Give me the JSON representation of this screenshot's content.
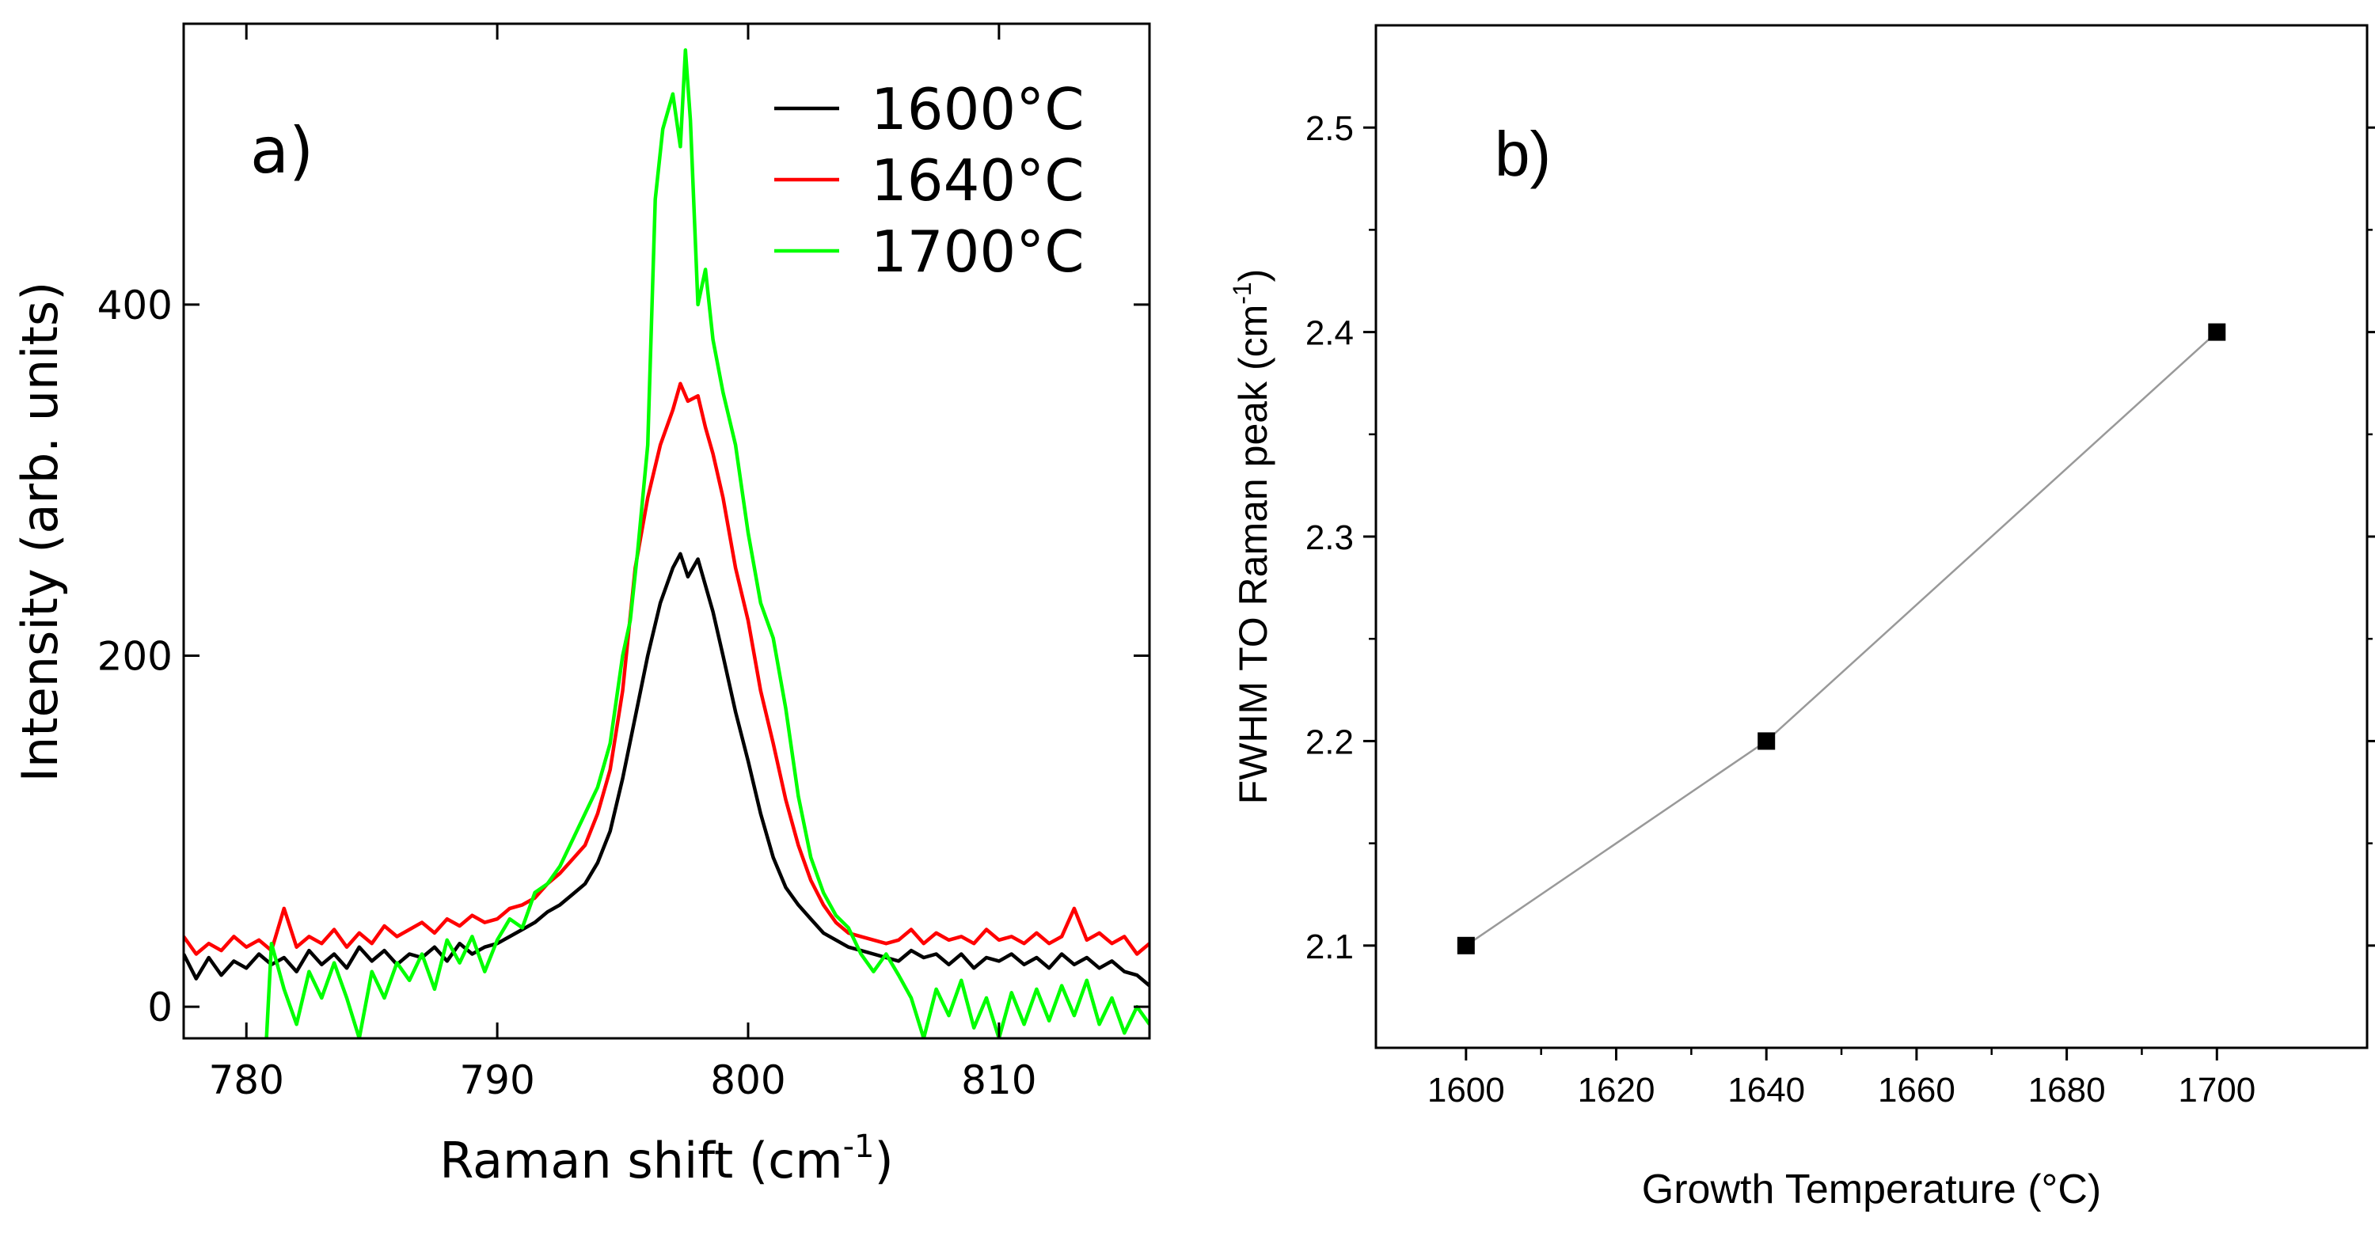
{
  "chart_data": [
    {
      "type": "line",
      "panel_label": "a)",
      "xlabel": "Raman shift (cm",
      "xlabel_sup": "-1",
      "xlabel_close": ")",
      "ylabel": "Intensity (arb. units)",
      "xlim": [
        777.5,
        816
      ],
      "ylim": [
        -18,
        560
      ],
      "xticks": [
        780,
        790,
        800,
        810
      ],
      "xtick_labels": [
        "780",
        "790",
        "800",
        "810"
      ],
      "yticks": [
        0,
        200,
        400
      ],
      "ytick_labels": [
        "0",
        "200",
        "400"
      ],
      "grid": false,
      "legend": "top-right",
      "series": [
        {
          "name": "1600°C",
          "color": "#000000",
          "x": [
            777.5,
            778,
            778.5,
            779,
            779.5,
            780,
            780.5,
            781,
            781.5,
            782,
            782.5,
            783,
            783.5,
            784,
            784.5,
            785,
            785.5,
            786,
            786.5,
            787,
            787.5,
            788,
            788.5,
            789,
            789.5,
            790,
            790.5,
            791,
            791.5,
            792,
            792.5,
            793,
            793.5,
            794,
            794.5,
            795,
            795.5,
            796,
            796.5,
            797,
            797.3,
            797.6,
            798,
            798.3,
            798.6,
            799,
            799.5,
            800,
            800.5,
            801,
            801.5,
            802,
            802.5,
            803,
            803.5,
            804,
            804.5,
            805,
            805.5,
            806,
            806.5,
            807,
            807.5,
            808,
            808.5,
            809,
            809.5,
            810,
            810.5,
            811,
            811.5,
            812,
            812.5,
            813,
            813.5,
            814,
            814.5,
            815,
            815.5,
            816
          ],
          "values": [
            30,
            16,
            28,
            18,
            26,
            22,
            30,
            24,
            28,
            20,
            32,
            24,
            30,
            22,
            34,
            26,
            32,
            24,
            30,
            28,
            34,
            26,
            36,
            30,
            34,
            36,
            40,
            44,
            48,
            54,
            58,
            64,
            70,
            82,
            100,
            130,
            165,
            200,
            230,
            250,
            258,
            245,
            255,
            240,
            225,
            200,
            168,
            140,
            110,
            85,
            68,
            58,
            50,
            42,
            38,
            34,
            32,
            30,
            28,
            26,
            32,
            28,
            30,
            24,
            30,
            22,
            28,
            26,
            30,
            24,
            28,
            22,
            30,
            24,
            28,
            22,
            26,
            20,
            18,
            12
          ]
        },
        {
          "name": "1640°C",
          "color": "#ff0000",
          "x": [
            777.5,
            778,
            778.5,
            779,
            779.5,
            780,
            780.5,
            781,
            781.5,
            782,
            782.5,
            783,
            783.5,
            784,
            784.5,
            785,
            785.5,
            786,
            786.5,
            787,
            787.5,
            788,
            788.5,
            789,
            789.5,
            790,
            790.5,
            791,
            791.5,
            792,
            792.5,
            793,
            793.5,
            794,
            794.5,
            795,
            795.5,
            796,
            796.5,
            797,
            797.3,
            797.6,
            798,
            798.3,
            798.6,
            799,
            799.5,
            800,
            800.5,
            801,
            801.5,
            802,
            802.5,
            803,
            803.5,
            804,
            804.5,
            805,
            805.5,
            806,
            806.5,
            807,
            807.5,
            808,
            808.5,
            809,
            809.5,
            810,
            810.5,
            811,
            811.5,
            812,
            812.5,
            813,
            813.5,
            814,
            814.5,
            815,
            815.5,
            816
          ],
          "values": [
            40,
            30,
            36,
            32,
            40,
            34,
            38,
            32,
            56,
            34,
            40,
            36,
            44,
            34,
            42,
            36,
            46,
            40,
            44,
            48,
            42,
            50,
            46,
            52,
            48,
            50,
            56,
            58,
            62,
            70,
            76,
            84,
            92,
            110,
            135,
            180,
            250,
            290,
            320,
            340,
            355,
            345,
            348,
            330,
            315,
            290,
            250,
            220,
            180,
            150,
            118,
            92,
            72,
            58,
            48,
            42,
            40,
            38,
            36,
            38,
            44,
            36,
            42,
            38,
            40,
            36,
            44,
            38,
            40,
            36,
            42,
            36,
            40,
            56,
            38,
            42,
            36,
            40,
            30,
            36
          ]
        },
        {
          "name": "1700°C",
          "color": "#00ff00",
          "x": [
            780.8,
            781,
            781.5,
            782,
            782.5,
            783,
            783.5,
            784,
            784.5,
            785,
            785.5,
            786,
            786.5,
            787,
            787.5,
            788,
            788.5,
            789,
            789.5,
            790,
            790.5,
            791,
            791.5,
            792,
            792.5,
            793,
            793.5,
            794,
            794.5,
            795,
            795.3,
            795.6,
            796,
            796.3,
            796.6,
            797,
            797.3,
            797.5,
            797.7,
            798,
            798.3,
            798.6,
            799,
            799.5,
            800,
            800.5,
            801,
            801.5,
            802,
            802.5,
            803,
            803.5,
            804,
            804.5,
            805,
            805.5,
            806,
            806.5,
            807,
            807.5,
            808,
            808.5,
            809,
            809.5,
            810,
            810.5,
            811,
            811.5,
            812,
            812.5,
            813,
            813.5,
            814,
            814.5,
            815,
            815.5,
            816
          ],
          "values": [
            -18,
            36,
            10,
            -10,
            20,
            5,
            25,
            5,
            -18,
            20,
            5,
            25,
            15,
            30,
            10,
            38,
            25,
            40,
            20,
            38,
            50,
            45,
            65,
            70,
            80,
            95,
            110,
            125,
            150,
            200,
            220,
            260,
            320,
            460,
            500,
            520,
            490,
            545,
            505,
            400,
            420,
            380,
            350,
            320,
            270,
            230,
            210,
            170,
            120,
            85,
            65,
            52,
            45,
            30,
            20,
            30,
            18,
            5,
            -18,
            10,
            -5,
            15,
            -12,
            5,
            -18,
            8,
            -10,
            10,
            -8,
            12,
            -5,
            15,
            -10,
            5,
            -15,
            0,
            -10
          ]
        }
      ]
    },
    {
      "type": "line",
      "panel_label": "b)",
      "xlabel": "Growth Temperature (°C)",
      "ylabel": "FWHM TO Raman peak (cm",
      "ylabel_sup": "-1",
      "ylabel_close": ")",
      "xlim": [
        1588,
        1720
      ],
      "ylim": [
        2.05,
        2.55
      ],
      "xticks": [
        1600,
        1620,
        1640,
        1660,
        1680,
        1700
      ],
      "xtick_labels": [
        "1600",
        "1620",
        "1640",
        "1660",
        "1680",
        "1700"
      ],
      "yticks": [
        2.1,
        2.2,
        2.3,
        2.4,
        2.5
      ],
      "ytick_labels": [
        "2.1",
        "2.2",
        "2.3",
        "2.4",
        "2.5"
      ],
      "grid": false,
      "series": [
        {
          "name": "FWHM",
          "marker": "square",
          "color": "#000000",
          "line_color": "#999999",
          "x": [
            1600,
            1640,
            1700
          ],
          "values": [
            2.1,
            2.2,
            2.4
          ]
        }
      ]
    }
  ]
}
